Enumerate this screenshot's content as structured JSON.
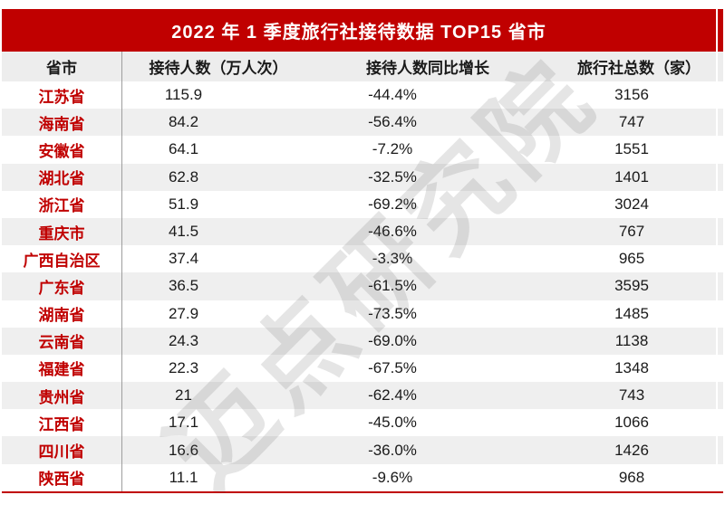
{
  "watermark": "迈点研究院",
  "colors": {
    "accent_red": "#c00000",
    "header_bg": "#ededed",
    "row_alt_bg": "#efefef",
    "text": "#1a1a1a",
    "divider_gray": "#9e9e9e"
  },
  "chart_data": {
    "type": "table",
    "title": "2022 年 1 季度旅行社接待数据 TOP15 省市",
    "columns": [
      "省市",
      "接待人数（万人次）",
      "接待人数同比增长",
      "旅行社总数（家）"
    ],
    "rows": [
      [
        "江苏省",
        "115.9",
        "-44.4%",
        "3156"
      ],
      [
        "海南省",
        "84.2",
        "-56.4%",
        "747"
      ],
      [
        "安徽省",
        "64.1",
        "-7.2%",
        "1551"
      ],
      [
        "湖北省",
        "62.8",
        "-32.5%",
        "1401"
      ],
      [
        "浙江省",
        "51.9",
        "-69.2%",
        "3024"
      ],
      [
        "重庆市",
        "41.5",
        "-46.6%",
        "767"
      ],
      [
        "广西自治区",
        "37.4",
        "-3.3%",
        "965"
      ],
      [
        "广东省",
        "36.5",
        "-61.5%",
        "3595"
      ],
      [
        "湖南省",
        "27.9",
        "-73.5%",
        "1485"
      ],
      [
        "云南省",
        "24.3",
        "-69.0%",
        "1138"
      ],
      [
        "福建省",
        "22.3",
        "-67.5%",
        "1348"
      ],
      [
        "贵州省",
        "21",
        "-62.4%",
        "743"
      ],
      [
        "江西省",
        "17.1",
        "-45.0%",
        "1066"
      ],
      [
        "四川省",
        "16.6",
        "-36.0%",
        "1426"
      ],
      [
        "陕西省",
        "11.1",
        "-9.6%",
        "968"
      ]
    ]
  }
}
